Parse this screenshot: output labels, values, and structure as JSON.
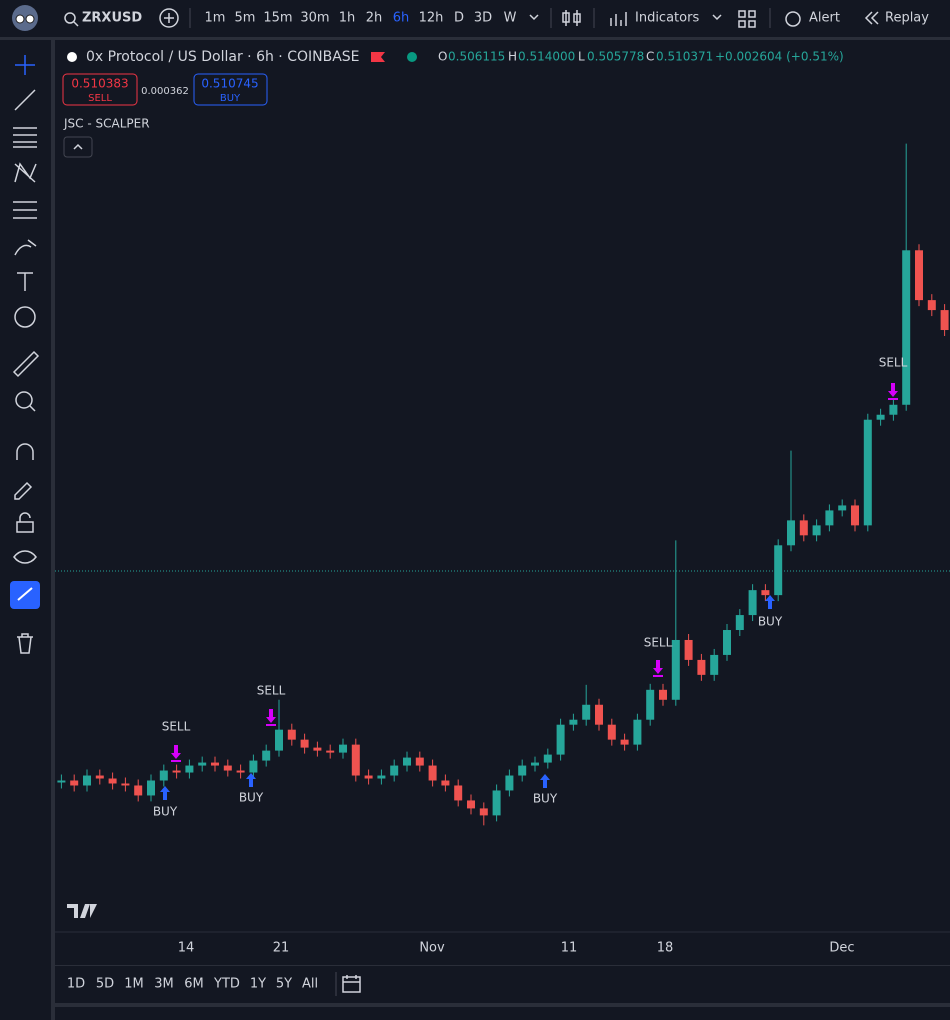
{
  "toolbar": {
    "symbol": "ZRXUSD",
    "intervals": [
      "1m",
      "5m",
      "15m",
      "30m",
      "1h",
      "2h",
      "6h",
      "12h",
      "D",
      "3D",
      "W"
    ],
    "indicators": "Indicators",
    "alert": "Alert",
    "replay": "Replay"
  },
  "legend": {
    "title": "0x Protocol / US Dollar · 6h · COINBASE",
    "open_label": "O",
    "open": "0.506115",
    "high_label": "H",
    "high": "0.514000",
    "low_label": "L",
    "low": "0.505778",
    "close_label": "C",
    "close": "0.510371",
    "change": "+0.002604 (+0.51%)",
    "sell_price": "0.510383",
    "sell": "SELL",
    "spread": "0.000362",
    "buy_price": "0.510745",
    "buy": "BUY",
    "indicator": "JSC - SCALPER"
  },
  "chart_data": {
    "type": "candlestick",
    "up_color": "#26a69a",
    "down_color": "#ef5350",
    "ylim": [
      0.15,
      1.043
    ],
    "open": [
      0.298,
      0.3,
      0.295,
      0.305,
      0.302,
      0.297,
      0.295,
      0.285,
      0.3,
      0.31,
      0.308,
      0.315,
      0.318,
      0.315,
      0.31,
      0.308,
      0.32,
      0.33,
      0.351,
      0.341,
      0.333,
      0.33,
      0.328,
      0.336,
      0.305,
      0.302,
      0.305,
      0.315,
      0.323,
      0.315,
      0.3,
      0.295,
      0.28,
      0.272,
      0.265,
      0.29,
      0.305,
      0.315,
      0.318,
      0.326,
      0.356,
      0.361,
      0.376,
      0.356,
      0.341,
      0.336,
      0.361,
      0.391,
      0.381,
      0.441,
      0.421,
      0.406,
      0.426,
      0.451,
      0.466,
      0.491,
      0.486,
      0.536,
      0.561,
      0.546,
      0.556,
      0.571,
      0.576,
      0.556,
      0.662,
      0.667,
      0.677,
      0.832,
      0.782,
      0.772
    ],
    "high": [
      0.306,
      0.306,
      0.311,
      0.311,
      0.308,
      0.303,
      0.301,
      0.306,
      0.316,
      0.316,
      0.321,
      0.324,
      0.324,
      0.321,
      0.316,
      0.326,
      0.336,
      0.381,
      0.357,
      0.347,
      0.339,
      0.336,
      0.342,
      0.342,
      0.311,
      0.311,
      0.321,
      0.329,
      0.329,
      0.321,
      0.306,
      0.301,
      0.286,
      0.278,
      0.296,
      0.311,
      0.321,
      0.324,
      0.332,
      0.362,
      0.367,
      0.396,
      0.382,
      0.362,
      0.347,
      0.367,
      0.397,
      0.397,
      0.541,
      0.447,
      0.427,
      0.432,
      0.457,
      0.472,
      0.497,
      0.497,
      0.542,
      0.631,
      0.567,
      0.562,
      0.577,
      0.582,
      0.582,
      0.668,
      0.673,
      0.683,
      0.939,
      0.838,
      0.788,
      0.778
    ],
    "low": [
      0.292,
      0.289,
      0.289,
      0.296,
      0.291,
      0.289,
      0.279,
      0.279,
      0.294,
      0.302,
      0.302,
      0.309,
      0.309,
      0.304,
      0.302,
      0.302,
      0.314,
      0.324,
      0.335,
      0.327,
      0.324,
      0.322,
      0.322,
      0.299,
      0.296,
      0.296,
      0.299,
      0.309,
      0.309,
      0.294,
      0.289,
      0.274,
      0.266,
      0.255,
      0.259,
      0.284,
      0.299,
      0.309,
      0.312,
      0.32,
      0.35,
      0.355,
      0.35,
      0.335,
      0.33,
      0.33,
      0.355,
      0.375,
      0.375,
      0.415,
      0.4,
      0.4,
      0.42,
      0.445,
      0.46,
      0.48,
      0.48,
      0.53,
      0.54,
      0.54,
      0.55,
      0.565,
      0.55,
      0.55,
      0.656,
      0.661,
      0.671,
      0.776,
      0.766,
      0.746
    ],
    "close": [
      0.3,
      0.295,
      0.305,
      0.302,
      0.297,
      0.295,
      0.285,
      0.3,
      0.31,
      0.308,
      0.315,
      0.318,
      0.315,
      0.31,
      0.308,
      0.32,
      0.33,
      0.351,
      0.341,
      0.333,
      0.33,
      0.328,
      0.336,
      0.305,
      0.302,
      0.305,
      0.315,
      0.323,
      0.315,
      0.3,
      0.295,
      0.28,
      0.272,
      0.265,
      0.29,
      0.305,
      0.315,
      0.318,
      0.326,
      0.356,
      0.361,
      0.376,
      0.356,
      0.341,
      0.336,
      0.361,
      0.391,
      0.381,
      0.441,
      0.421,
      0.406,
      0.426,
      0.451,
      0.466,
      0.491,
      0.486,
      0.536,
      0.561,
      0.546,
      0.556,
      0.571,
      0.576,
      0.556,
      0.662,
      0.667,
      0.677,
      0.832,
      0.782,
      0.772,
      0.752
    ],
    "signals": [
      "BUY",
      "SELL",
      "BUY",
      "SELL",
      "BUY",
      "SELL",
      "BUY",
      "SELL"
    ],
    "x_labels": [
      "14",
      "21",
      "Nov",
      "11",
      "18",
      "Dec"
    ]
  },
  "range_buttons": [
    "1D",
    "5D",
    "1M",
    "3M",
    "6M",
    "YTD",
    "1Y",
    "5Y",
    "All"
  ]
}
